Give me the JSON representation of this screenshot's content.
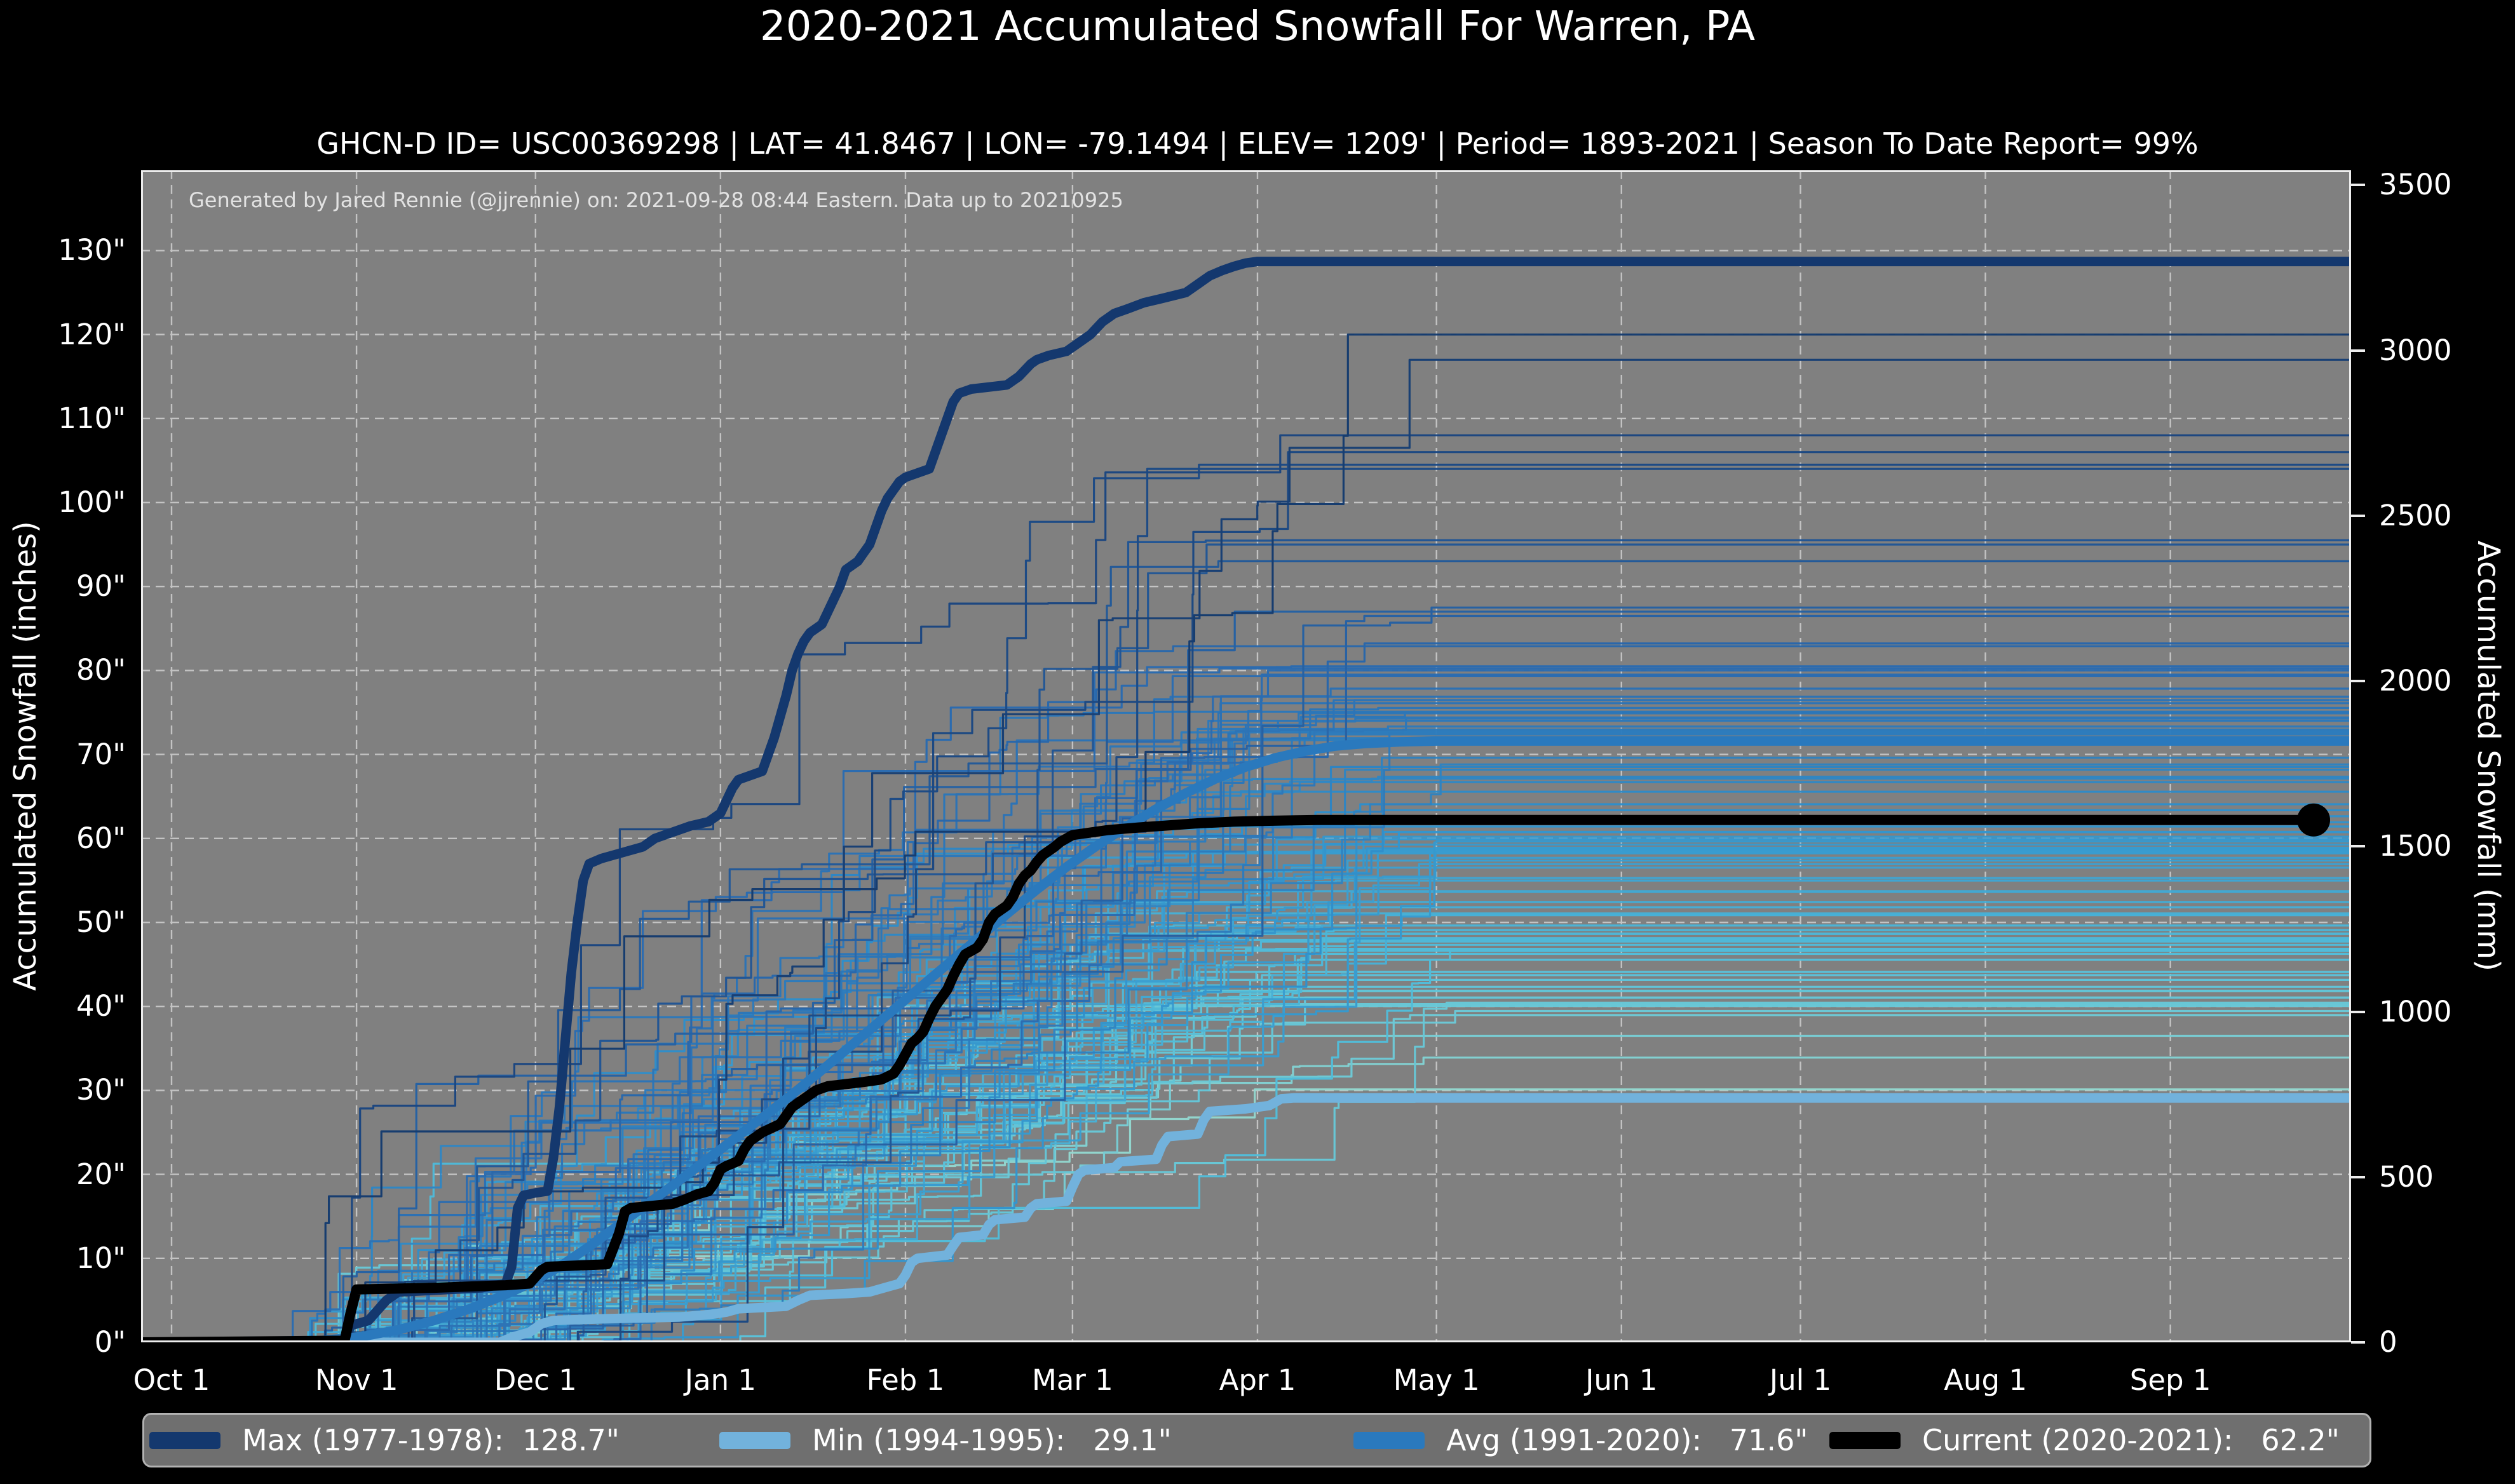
{
  "title": "2020-2021 Accumulated Snowfall For Warren, PA",
  "subtitle": "GHCN-D ID= USC00369298 | LAT= 41.8467 | LON= -79.1494 | ELEV= 1209' | Period= 1893-2021 | Season To Date Report= 99%",
  "annotation": "Generated by Jared Rennie (@jjrennie) on: 2021-09-28 08:44 Eastern. Data up to 20210925",
  "axes": {
    "left_title": "Accumulated Snowfall (inches)",
    "right_title": "Accumulated Snowfall (mm)",
    "y_left_ticks": [
      {
        "label": "0\"",
        "inches": 0
      },
      {
        "label": "10\"",
        "inches": 10
      },
      {
        "label": "20\"",
        "inches": 20
      },
      {
        "label": "30\"",
        "inches": 30
      },
      {
        "label": "40\"",
        "inches": 40
      },
      {
        "label": "50\"",
        "inches": 50
      },
      {
        "label": "60\"",
        "inches": 60
      },
      {
        "label": "70\"",
        "inches": 70
      },
      {
        "label": "80\"",
        "inches": 80
      },
      {
        "label": "90\"",
        "inches": 90
      },
      {
        "label": "100\"",
        "inches": 100
      },
      {
        "label": "110\"",
        "inches": 110
      },
      {
        "label": "120\"",
        "inches": 120
      },
      {
        "label": "130\"",
        "inches": 130
      }
    ],
    "y_right_ticks": [
      {
        "label": "0",
        "mm": 0
      },
      {
        "label": "500",
        "mm": 500
      },
      {
        "label": "1000",
        "mm": 1000
      },
      {
        "label": "1500",
        "mm": 1500
      },
      {
        "label": "2000",
        "mm": 2000
      },
      {
        "label": "2500",
        "mm": 2500
      },
      {
        "label": "3000",
        "mm": 3000
      },
      {
        "label": "3500",
        "mm": 3500
      }
    ],
    "x_ticks": [
      {
        "label": "Oct 1",
        "day": 0
      },
      {
        "label": "Nov 1",
        "day": 31
      },
      {
        "label": "Dec 1",
        "day": 61
      },
      {
        "label": "Jan 1",
        "day": 92
      },
      {
        "label": "Feb 1",
        "day": 123
      },
      {
        "label": "Mar 1",
        "day": 151
      },
      {
        "label": "Apr 1",
        "day": 182
      },
      {
        "label": "May 1",
        "day": 212
      },
      {
        "label": "Jun 1",
        "day": 243
      },
      {
        "label": "Jul 1",
        "day": 273
      },
      {
        "label": "Aug 1",
        "day": 304
      },
      {
        "label": "Sep 1",
        "day": 335
      }
    ]
  },
  "legend": {
    "items": [
      {
        "label": "Max (1977-1978):  128.7\"",
        "color": "#14386e"
      },
      {
        "label": "Min (1994-1995):   29.1\"",
        "color": "#72b2dc"
      },
      {
        "label": "Avg (1991-2020):   71.6\"",
        "color": "#2a79bd"
      },
      {
        "label": "Current (2020-2021):   62.2\"",
        "color": "#000000"
      }
    ]
  },
  "colors": {
    "figure_bg": "#000000",
    "plot_bg": "#808080",
    "grid": "#cbcbcb",
    "spine": "#ededed",
    "max_line": "#14386e",
    "min_line": "#72b2dc",
    "avg_line": "#2a79bd",
    "current_line": "#000000",
    "annotation_text": "#e2e2e2"
  },
  "chart_data": {
    "type": "line",
    "title": "2020-2021 Accumulated Snowfall For Warren, PA",
    "xlabel": "days since Oct 1 (ticks at month starts Oct 1 - Sep 1)",
    "ylabel_left": "Accumulated Snowfall (inches)",
    "ylabel_right": "Accumulated Snowfall (mm)",
    "xlim_days": [
      -5,
      366
    ],
    "ylim_inches": [
      0,
      139.6
    ],
    "grid": "dashed, both axes, every month / every 10 inches",
    "legend_position": "bottom bar",
    "series": [
      {
        "name": "Max (1977-1978)",
        "final_inches": 128.7,
        "color": "#14386e",
        "width": 15,
        "points": [
          [
            -5,
            0
          ],
          [
            29,
            0
          ],
          [
            30,
            2
          ],
          [
            33,
            2.6
          ],
          [
            36,
            5
          ],
          [
            38,
            6
          ],
          [
            44,
            6.2
          ],
          [
            52,
            6.5
          ],
          [
            56,
            7
          ],
          [
            57,
            9
          ],
          [
            58,
            16
          ],
          [
            59,
            17.5
          ],
          [
            61,
            17.8
          ],
          [
            63,
            18
          ],
          [
            64,
            22
          ],
          [
            65,
            28
          ],
          [
            66,
            36
          ],
          [
            67,
            44
          ],
          [
            68,
            50
          ],
          [
            69,
            55
          ],
          [
            70,
            57
          ],
          [
            72,
            57.6
          ],
          [
            74,
            58
          ],
          [
            79,
            59
          ],
          [
            81,
            60
          ],
          [
            83,
            60.5
          ],
          [
            85,
            61
          ],
          [
            87,
            61.5
          ],
          [
            90,
            62
          ],
          [
            92,
            63
          ],
          [
            93,
            64.5
          ],
          [
            94,
            66
          ],
          [
            95,
            67
          ],
          [
            99,
            68
          ],
          [
            100,
            70
          ],
          [
            101,
            72
          ],
          [
            102,
            74.5
          ],
          [
            103,
            77
          ],
          [
            104,
            80
          ],
          [
            105,
            82
          ],
          [
            106,
            83.5
          ],
          [
            107,
            84.5
          ],
          [
            109,
            85.5
          ],
          [
            110,
            87
          ],
          [
            111,
            88.5
          ],
          [
            112,
            90
          ],
          [
            113,
            92
          ],
          [
            115,
            93
          ],
          [
            116,
            94
          ],
          [
            117,
            95
          ],
          [
            118,
            97
          ],
          [
            119,
            99
          ],
          [
            120,
            100.5
          ],
          [
            121,
            101.5
          ],
          [
            122,
            102.5
          ],
          [
            123,
            103
          ],
          [
            127,
            104
          ],
          [
            128,
            106
          ],
          [
            129,
            108
          ],
          [
            130,
            110
          ],
          [
            131,
            112
          ],
          [
            132,
            113
          ],
          [
            134,
            113.5
          ],
          [
            140,
            114
          ],
          [
            142,
            115
          ],
          [
            144,
            116.5
          ],
          [
            145,
            117
          ],
          [
            147,
            117.5
          ],
          [
            150,
            118
          ],
          [
            152,
            119
          ],
          [
            154,
            120
          ],
          [
            156,
            121.5
          ],
          [
            158,
            122.5
          ],
          [
            160,
            123
          ],
          [
            163,
            123.8
          ],
          [
            166,
            124.3
          ],
          [
            170,
            125
          ],
          [
            172,
            126
          ],
          [
            174,
            127
          ],
          [
            176,
            127.6
          ],
          [
            178,
            128.1
          ],
          [
            180,
            128.5
          ],
          [
            182,
            128.7
          ],
          [
            366,
            128.7
          ]
        ]
      },
      {
        "name": "Min (1994-1995)",
        "final_inches": 29.1,
        "color": "#72b2dc",
        "width": 15,
        "points": [
          [
            -5,
            0
          ],
          [
            55,
            0
          ],
          [
            57,
            0.6
          ],
          [
            60,
            1.2
          ],
          [
            62,
            2.2
          ],
          [
            64,
            2.6
          ],
          [
            72,
            2.8
          ],
          [
            85,
            3
          ],
          [
            90,
            3.3
          ],
          [
            93,
            3.6
          ],
          [
            95,
            4
          ],
          [
            103,
            4.3
          ],
          [
            105,
            5
          ],
          [
            107,
            5.6
          ],
          [
            113,
            5.8
          ],
          [
            117,
            6
          ],
          [
            120,
            6.6
          ],
          [
            122,
            7
          ],
          [
            123,
            8
          ],
          [
            124,
            9.5
          ],
          [
            125,
            10
          ],
          [
            130,
            10.4
          ],
          [
            131,
            11.5
          ],
          [
            132,
            12.5
          ],
          [
            136,
            12.8
          ],
          [
            137,
            14
          ],
          [
            138,
            14.6
          ],
          [
            143,
            14.9
          ],
          [
            144,
            16
          ],
          [
            145,
            16.5
          ],
          [
            150,
            16.8
          ],
          [
            151,
            18.5
          ],
          [
            152,
            20
          ],
          [
            153,
            20.5
          ],
          [
            158,
            20.8
          ],
          [
            159,
            21.5
          ],
          [
            165,
            21.8
          ],
          [
            166,
            23.5
          ],
          [
            167,
            24.5
          ],
          [
            172,
            24.8
          ],
          [
            173,
            26.5
          ],
          [
            174,
            27.5
          ],
          [
            180,
            27.8
          ],
          [
            184,
            28.2
          ],
          [
            186,
            29
          ],
          [
            188,
            29.1
          ],
          [
            366,
            29.1
          ]
        ]
      },
      {
        "name": "Avg (1991-2020)",
        "final_inches": 71.6,
        "color": "#2a79bd",
        "width": 15,
        "points": [
          [
            -5,
            0
          ],
          [
            25,
            0.2
          ],
          [
            32,
            0.7
          ],
          [
            38,
            1.5
          ],
          [
            44,
            2.6
          ],
          [
            50,
            4
          ],
          [
            55,
            5.4
          ],
          [
            60,
            7
          ],
          [
            65,
            9
          ],
          [
            70,
            11.4
          ],
          [
            75,
            14
          ],
          [
            80,
            16.6
          ],
          [
            85,
            19.2
          ],
          [
            90,
            21.9
          ],
          [
            95,
            24.6
          ],
          [
            100,
            27.3
          ],
          [
            105,
            30.1
          ],
          [
            110,
            33
          ],
          [
            115,
            36
          ],
          [
            120,
            39
          ],
          [
            125,
            42
          ],
          [
            130,
            45
          ],
          [
            135,
            48
          ],
          [
            140,
            51
          ],
          [
            145,
            53.9
          ],
          [
            150,
            56.6
          ],
          [
            155,
            59.1
          ],
          [
            160,
            61.4
          ],
          [
            165,
            63.5
          ],
          [
            170,
            65.4
          ],
          [
            175,
            67.1
          ],
          [
            180,
            68.5
          ],
          [
            185,
            69.6
          ],
          [
            190,
            70.4
          ],
          [
            195,
            71
          ],
          [
            200,
            71.3
          ],
          [
            206,
            71.5
          ],
          [
            212,
            71.6
          ],
          [
            366,
            71.6
          ]
        ]
      },
      {
        "name": "Current (2020-2021)",
        "final_inches": 62.2,
        "color": "#000000",
        "width": 16,
        "end_dot": {
          "day": 359,
          "inches": 62.2,
          "radius": 26
        },
        "points": [
          [
            -5,
            0
          ],
          [
            29,
            0.2
          ],
          [
            30,
            3.5
          ],
          [
            31,
            6.3
          ],
          [
            44,
            6.5
          ],
          [
            56,
            6.8
          ],
          [
            60,
            7
          ],
          [
            62,
            8.6
          ],
          [
            63,
            9
          ],
          [
            73,
            9.3
          ],
          [
            75,
            13
          ],
          [
            76,
            15.6
          ],
          [
            77,
            16
          ],
          [
            84,
            16.5
          ],
          [
            86,
            17
          ],
          [
            88,
            17.6
          ],
          [
            90,
            18
          ],
          [
            91,
            19
          ],
          [
            92,
            20.6
          ],
          [
            93,
            21
          ],
          [
            95,
            21.6
          ],
          [
            96,
            23
          ],
          [
            97,
            24
          ],
          [
            99,
            25
          ],
          [
            102,
            26
          ],
          [
            103,
            27
          ],
          [
            104,
            28
          ],
          [
            106,
            29
          ],
          [
            108,
            30
          ],
          [
            110,
            30.5
          ],
          [
            116,
            31
          ],
          [
            119,
            31.3
          ],
          [
            121,
            32
          ],
          [
            122,
            33
          ],
          [
            123,
            34.3
          ],
          [
            124,
            35.6
          ],
          [
            125,
            36.2
          ],
          [
            126,
            37
          ],
          [
            127,
            38.6
          ],
          [
            128,
            40
          ],
          [
            129,
            41
          ],
          [
            130,
            42
          ],
          [
            131,
            43.6
          ],
          [
            132,
            45
          ],
          [
            133,
            46.2
          ],
          [
            135,
            47
          ],
          [
            136,
            48
          ],
          [
            137,
            50
          ],
          [
            138,
            51
          ],
          [
            140,
            52
          ],
          [
            141,
            53
          ],
          [
            142,
            54.6
          ],
          [
            143,
            55.6
          ],
          [
            144,
            56.2
          ],
          [
            145,
            57.2
          ],
          [
            146,
            58
          ],
          [
            148,
            59
          ],
          [
            149,
            59.6
          ],
          [
            150,
            60
          ],
          [
            151,
            60.4
          ],
          [
            155,
            60.8
          ],
          [
            157,
            61
          ],
          [
            162,
            61.3
          ],
          [
            166,
            61.5
          ],
          [
            172,
            61.8
          ],
          [
            178,
            62
          ],
          [
            184,
            62.1
          ],
          [
            192,
            62.2
          ],
          [
            359,
            62.2
          ]
        ]
      }
    ],
    "background_years": {
      "description": "thin accumulation curves for each season 1893-2021, plateauing Apr-May and running flat to right edge",
      "count": 112,
      "seed": 7,
      "start_day_range": [
        18,
        66
      ],
      "plateau_day_range": [
        168,
        218
      ],
      "final_inches_range": [
        30,
        121
      ],
      "notable_plateaus": [
        120,
        117,
        108,
        106,
        104.5,
        104,
        95.5,
        95,
        93,
        87.5,
        87,
        86.5,
        80.5,
        80
      ],
      "color_scale": [
        [
          30,
          "#93d8d0"
        ],
        [
          45,
          "#55c2dc"
        ],
        [
          62,
          "#2f93cf"
        ],
        [
          80,
          "#2a6cb2"
        ],
        [
          100,
          "#1d4e8c"
        ],
        [
          121,
          "#143a6e"
        ]
      ],
      "line_width": 3.2
    }
  }
}
